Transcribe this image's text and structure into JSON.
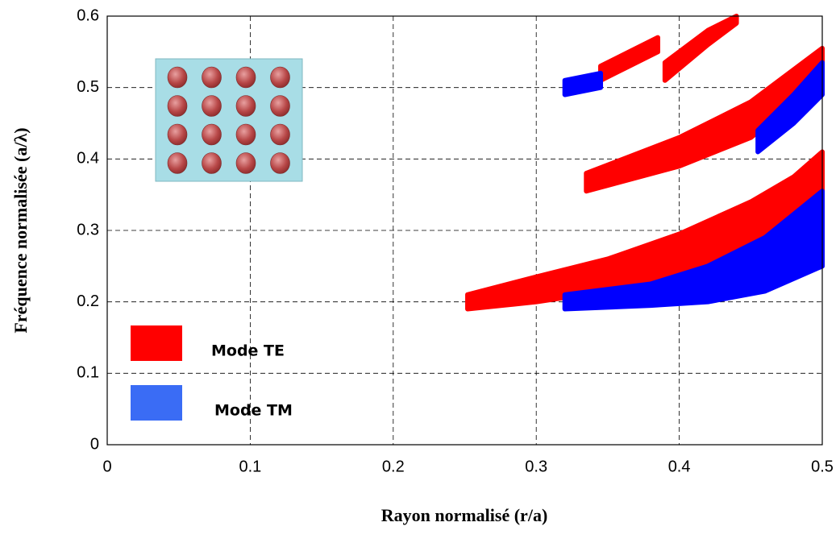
{
  "chart_data": {
    "type": "gap-map",
    "xlabel": "Rayon normalisé  (r/a)",
    "ylabel": "Fréquence normalisée (a/λ)",
    "xlim": [
      0,
      0.5
    ],
    "ylim": [
      0,
      0.6
    ],
    "xticks": [
      0,
      0.1,
      0.2,
      0.3,
      0.4,
      0.5
    ],
    "yticks": [
      0,
      0.1,
      0.2,
      0.3,
      0.4,
      0.5,
      0.6
    ],
    "grid": true,
    "legend": "lower-left",
    "series": [
      {
        "name": "Mode TE",
        "color": "#ff0000",
        "gaps": [
          {
            "x": [
              0.252,
              0.3,
              0.35,
              0.4,
              0.45,
              0.48,
              0.5
            ],
            "lower": [
              0.19,
              0.2,
              0.215,
              0.235,
              0.265,
              0.3,
              0.355
            ],
            "upper": [
              0.21,
              0.235,
              0.26,
              0.295,
              0.34,
              0.375,
              0.41
            ]
          },
          {
            "x": [
              0.335,
              0.4,
              0.45,
              0.5
            ],
            "lower": [
              0.355,
              0.39,
              0.43,
              0.51
            ],
            "upper": [
              0.38,
              0.43,
              0.48,
              0.555
            ]
          },
          {
            "x": [
              0.345,
              0.365,
              0.385
            ],
            "lower": [
              0.51,
              0.53,
              0.55
            ],
            "upper": [
              0.53,
              0.55,
              0.57
            ]
          },
          {
            "x": [
              0.39,
              0.42,
              0.44
            ],
            "lower": [
              0.51,
              0.56,
              0.59
            ],
            "upper": [
              0.535,
              0.58,
              0.6
            ]
          }
        ]
      },
      {
        "name": "Mode TM",
        "color": "#0000ff",
        "gaps": [
          {
            "x": [
              0.32,
              0.38,
              0.42,
              0.46,
              0.5
            ],
            "lower": [
              0.19,
              0.195,
              0.2,
              0.215,
              0.25
            ],
            "upper": [
              0.21,
              0.225,
              0.25,
              0.29,
              0.355
            ]
          },
          {
            "x": [
              0.455,
              0.48,
              0.5
            ],
            "lower": [
              0.41,
              0.45,
              0.49
            ],
            "upper": [
              0.44,
              0.49,
              0.535
            ]
          },
          {
            "x": [
              0.32,
              0.345
            ],
            "lower": [
              0.49,
              0.5
            ],
            "upper": [
              0.51,
              0.52
            ]
          }
        ]
      }
    ]
  }
}
